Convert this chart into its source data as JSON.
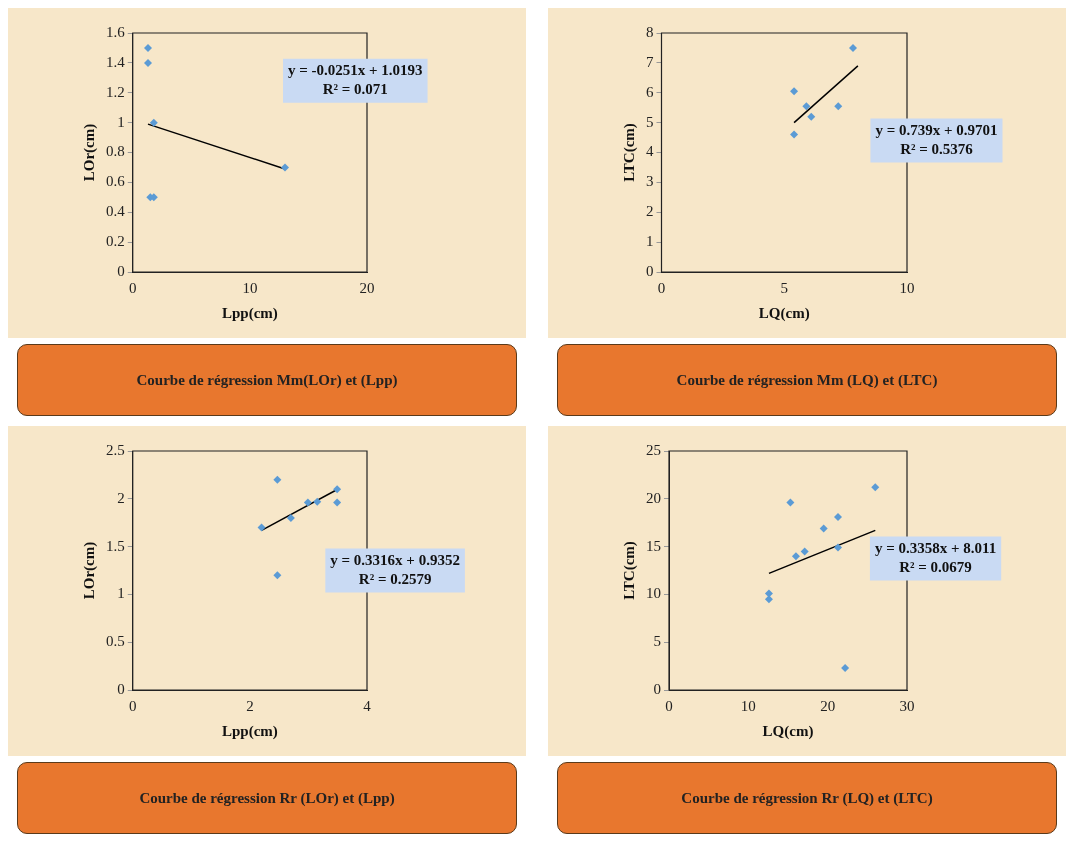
{
  "chart_data": [
    {
      "type": "scatter",
      "title": "Courbe de régression Mm(LOr) et (Lpp)",
      "xlabel": "Lpp(cm)",
      "ylabel": "LOr(cm)",
      "xlim": [
        0,
        20
      ],
      "xticks": [
        0,
        10,
        20
      ],
      "ylim": [
        0,
        1.6
      ],
      "yticks": [
        0,
        0.2,
        0.4,
        0.6,
        0.8,
        1,
        1.2,
        1.4,
        1.6
      ],
      "grid": false,
      "legend": false,
      "annotations": [
        "y = -0.0251x + 1.0193",
        "R² = 0.071"
      ],
      "series": [
        {
          "color": "#5b9bd5",
          "marker": "diamond",
          "x": [
            1.3,
            1.3,
            1.8,
            1.5,
            1.8,
            13
          ],
          "values": [
            1.5,
            1.4,
            1.0,
            0.5,
            0.5,
            0.7
          ]
        },
        {
          "type": "line",
          "marker": "none",
          "color": "#000000",
          "x": [
            1.3,
            13
          ],
          "values": [
            0.99,
            0.69
          ]
        }
      ]
    },
    {
      "type": "scatter",
      "title": "Courbe de régression Mm (LQ) et (LTC)",
      "xlabel": "LQ(cm)",
      "ylabel": "LTC(cm)",
      "xlim": [
        0,
        10
      ],
      "xticks": [
        0,
        5,
        10
      ],
      "ylim": [
        0,
        8
      ],
      "yticks": [
        0,
        1,
        2,
        3,
        4,
        5,
        6,
        7,
        8
      ],
      "grid": false,
      "legend": false,
      "annotations": [
        "y = 0.739x + 0.9701",
        "R² = 0.5376"
      ],
      "series": [
        {
          "color": "#5b9bd5",
          "marker": "diamond",
          "x": [
            5.4,
            5.4,
            5.9,
            6.1,
            7.2,
            7.8
          ],
          "values": [
            6.05,
            4.6,
            5.55,
            5.2,
            5.55,
            7.5
          ]
        },
        {
          "type": "line",
          "marker": "none",
          "color": "#000000",
          "x": [
            5.4,
            8
          ],
          "values": [
            5.0,
            6.9
          ]
        }
      ]
    },
    {
      "type": "scatter",
      "title": "Courbe de régression Rr (LOr) et (Lpp)",
      "xlabel": "Lpp(cm)",
      "ylabel": "LOr(cm)",
      "xlim": [
        0,
        4
      ],
      "xticks": [
        0,
        2,
        4
      ],
      "ylim": [
        0,
        2.5
      ],
      "yticks": [
        0,
        0.5,
        1,
        1.5,
        2,
        2.5
      ],
      "grid": false,
      "legend": false,
      "annotations": [
        "y = 0.3316x + 0.9352",
        "R² = 0.2579"
      ],
      "series": [
        {
          "color": "#5b9bd5",
          "marker": "diamond",
          "x": [
            2.2,
            2.47,
            2.47,
            2.7,
            2.99,
            3.15,
            3.49,
            3.49
          ],
          "values": [
            1.7,
            2.2,
            1.2,
            1.8,
            1.96,
            1.97,
            2.1,
            1.96
          ]
        },
        {
          "type": "line",
          "marker": "none",
          "color": "#000000",
          "x": [
            2.2,
            3.5
          ],
          "values": [
            1.67,
            2.1
          ]
        }
      ]
    },
    {
      "type": "scatter",
      "title": "Courbe de régression Rr (LQ) et (LTC)",
      "xlabel": "LQ(cm)",
      "ylabel": "LTC(cm)",
      "xlim": [
        0,
        30
      ],
      "xticks": [
        0,
        10,
        20,
        30
      ],
      "ylim": [
        0,
        25
      ],
      "yticks": [
        0,
        5,
        10,
        15,
        20,
        25
      ],
      "grid": false,
      "legend": false,
      "annotations": [
        "y = 0.3358x + 8.011",
        "R² = 0.0679"
      ],
      "series": [
        {
          "color": "#5b9bd5",
          "marker": "diamond",
          "x": [
            12.6,
            12.6,
            15.3,
            16,
            17.1,
            19.5,
            21.3,
            21.3,
            22.2,
            26
          ],
          "values": [
            10.1,
            9.5,
            19.6,
            14.0,
            14.5,
            16.9,
            18.1,
            14.9,
            2.3,
            21.2
          ]
        },
        {
          "type": "line",
          "marker": "none",
          "color": "#000000",
          "x": [
            12.6,
            26
          ],
          "values": [
            12.2,
            16.7
          ]
        }
      ]
    }
  ]
}
